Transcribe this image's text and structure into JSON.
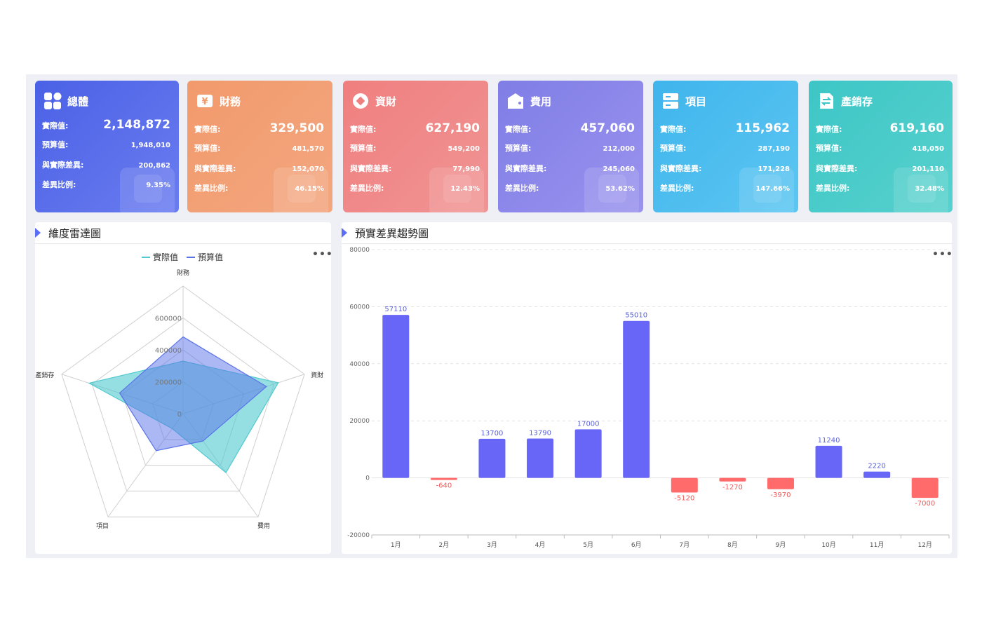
{
  "kpis": [
    {
      "title": "總體",
      "actual_label": "實際值:",
      "actual": "2,148,872",
      "budget_label": "預算值:",
      "budget": "1,948,010",
      "diff_label": "與實際差異:",
      "diff": "200,862",
      "ratio_label": "差異比例:",
      "ratio": "9.35%",
      "icon": "grid-icon",
      "gradient": [
        "#4b61e6",
        "#6a7cf0"
      ]
    },
    {
      "title": "財務",
      "actual_label": "實際值:",
      "actual": "329,500",
      "budget_label": "預算值:",
      "budget": "481,570",
      "diff_label": "與實際差異:",
      "diff": "152,070",
      "ratio_label": "差異比例:",
      "ratio": "46.15%",
      "icon": "money-icon",
      "gradient": [
        "#f29a6c",
        "#f3a67f"
      ]
    },
    {
      "title": "資財",
      "actual_label": "實際值:",
      "actual": "627,190",
      "budget_label": "預算值:",
      "budget": "549,200",
      "diff_label": "與實際差異:",
      "diff": "77,990",
      "ratio_label": "差異比例:",
      "ratio": "12.43%",
      "icon": "coin-icon",
      "gradient": [
        "#f07f7f",
        "#f09494"
      ]
    },
    {
      "title": "費用",
      "actual_label": "實際值:",
      "actual": "457,060",
      "budget_label": "預算值:",
      "budget": "212,000",
      "diff_label": "與實際差異:",
      "diff": "245,060",
      "ratio_label": "差異比例:",
      "ratio": "53.62%",
      "icon": "wallet-icon",
      "gradient": [
        "#7f7ee6",
        "#9a92ee"
      ]
    },
    {
      "title": "項目",
      "actual_label": "實際值:",
      "actual": "115,962",
      "budget_label": "預算值:",
      "budget": "287,190",
      "diff_label": "與實際差異:",
      "diff": "171,228",
      "ratio_label": "差異比例:",
      "ratio": "147.66%",
      "icon": "list-icon",
      "gradient": [
        "#3fb5ec",
        "#5cc6f2"
      ]
    },
    {
      "title": "產銷存",
      "actual_label": "實際值:",
      "actual": "619,160",
      "budget_label": "預算值:",
      "budget": "418,050",
      "diff_label": "與實際差異:",
      "diff": "201,110",
      "ratio_label": "差異比例:",
      "ratio": "32.48%",
      "icon": "exchange-icon",
      "gradient": [
        "#3dc6c6",
        "#57d1cd"
      ]
    }
  ],
  "radar_panel": {
    "title": "維度雷達圖",
    "more": "•••"
  },
  "bar_panel": {
    "title": "預實差異趨勢圖",
    "more": "•••"
  },
  "colors": {
    "actual": "#4ec9cf",
    "budget": "#5a72e8",
    "bar_pos": "#6766f6",
    "bar_neg": "#ff6b6b",
    "neg_label": "#f05a5a",
    "pos_label": "#5b62d8"
  },
  "chart_data": [
    {
      "type": "radar",
      "title": "維度雷達圖",
      "legend": [
        "實際值",
        "預算值"
      ],
      "legend_position": "top",
      "indicators": [
        "財務",
        "資財",
        "費用",
        "項目",
        "產銷存"
      ],
      "radial_ticks": [
        "0",
        "200000",
        "400000",
        "600000"
      ],
      "max": 800000,
      "series": [
        {
          "name": "實際值",
          "values": [
            329500,
            627190,
            457060,
            115962,
            619160
          ]
        },
        {
          "name": "預算值",
          "values": [
            481570,
            549200,
            212000,
            287190,
            418050
          ]
        }
      ]
    },
    {
      "type": "bar",
      "title": "預實差異趨勢圖",
      "categories": [
        "1月",
        "2月",
        "3月",
        "4月",
        "5月",
        "6月",
        "7月",
        "8月",
        "9月",
        "10月",
        "11月",
        "12月"
      ],
      "values": [
        57110,
        -640,
        13700,
        13790,
        17000,
        55010,
        -5120,
        -1270,
        -3970,
        11240,
        2220,
        -7000
      ],
      "ylim": [
        -20000,
        80000
      ],
      "yticks": [
        -20000,
        0,
        20000,
        40000,
        60000,
        80000
      ],
      "grid": true
    }
  ]
}
